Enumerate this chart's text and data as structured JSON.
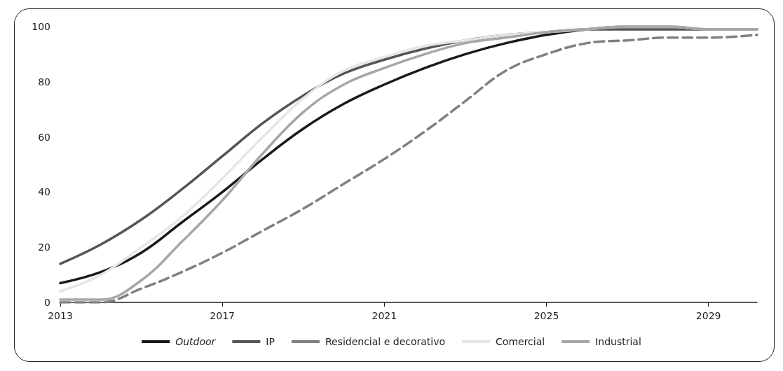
{
  "chart_data": {
    "type": "line",
    "x": [
      2013,
      2014,
      2015,
      2016,
      2017,
      2018,
      2019,
      2020,
      2021,
      2022,
      2023,
      2024,
      2025,
      2026,
      2027,
      2028,
      2029,
      2030.2
    ],
    "series": [
      {
        "name": "Outdoor",
        "color": "#1a1a1a",
        "values": [
          7,
          11,
          18,
          29,
          40,
          52,
          63,
          72,
          79,
          85,
          90,
          94,
          97,
          99,
          100,
          100,
          99,
          99
        ]
      },
      {
        "name": "IP",
        "color": "#555555",
        "values": [
          14,
          21,
          30,
          41,
          53,
          65,
          75,
          83,
          88,
          92,
          95,
          97,
          98,
          99,
          99,
          99,
          99,
          99
        ]
      },
      {
        "name": "Residencial e decorativo",
        "color": "#808080",
        "line_style": "dashed",
        "values": [
          0,
          0,
          5,
          11,
          18,
          26,
          34,
          43,
          52,
          62,
          73,
          84,
          90,
          94,
          95,
          96,
          96,
          97
        ]
      },
      {
        "name": "Comercial",
        "color": "#e6e6e6",
        "values": [
          4,
          10,
          20,
          31,
          45,
          60,
          74,
          84,
          89,
          93,
          95,
          97,
          98,
          99,
          100,
          100,
          99,
          99
        ]
      },
      {
        "name": "Industrial",
        "color": "#a6a6a6",
        "values": [
          1,
          1,
          8,
          22,
          37,
          54,
          69,
          79,
          85,
          90,
          94,
          96,
          98,
          99,
          100,
          100,
          99,
          99
        ]
      }
    ],
    "xlim": [
      2013,
      2030.2
    ],
    "xticks": [
      2013,
      2017,
      2021,
      2025,
      2029
    ],
    "ylim": [
      0,
      100
    ],
    "yticks": [
      0,
      20,
      40,
      60,
      80,
      100
    ],
    "grid": false,
    "legend": "bottom",
    "marker": "none",
    "line_style": "solid"
  }
}
